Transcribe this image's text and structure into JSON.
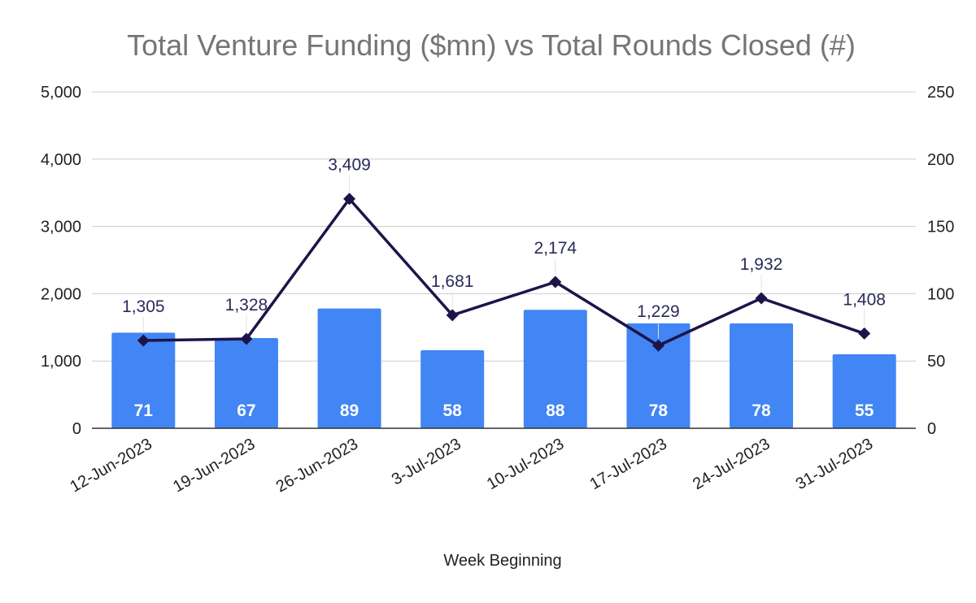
{
  "chart_data": {
    "type": "bar",
    "title": "Total Venture Funding ($mn) vs Total Rounds Closed (#)",
    "xlabel": "Week Beginning",
    "ylabel": "",
    "categories": [
      "12-Jun-2023",
      "19-Jun-2023",
      "26-Jun-2023",
      "3-Jul-2023",
      "10-Jul-2023",
      "17-Jul-2023",
      "24-Jul-2023",
      "31-Jul-2023"
    ],
    "left_axis": {
      "ylim": [
        0,
        5000
      ],
      "ticks": [
        "0",
        "1,000",
        "2,000",
        "3,000",
        "4,000",
        "5,000"
      ]
    },
    "right_axis": {
      "ylim": [
        0,
        250
      ],
      "ticks": [
        "0",
        "50",
        "100",
        "150",
        "200",
        "250"
      ]
    },
    "series": [
      {
        "name": "Total Rounds Closed (#)",
        "type": "bar",
        "axis": "right",
        "color": "#4285f4",
        "values": [
          71,
          67,
          89,
          58,
          88,
          78,
          78,
          55
        ],
        "labels": [
          "71",
          "67",
          "89",
          "58",
          "88",
          "78",
          "78",
          "55"
        ]
      },
      {
        "name": "Total Venture Funding ($mn)",
        "type": "line",
        "axis": "left",
        "color": "#1c1449",
        "values": [
          1305,
          1328,
          3409,
          1681,
          2174,
          1229,
          1932,
          1408
        ],
        "labels": [
          "1,305",
          "1,328",
          "3,409",
          "1,681",
          "2,174",
          "1,229",
          "1,932",
          "1,408"
        ]
      }
    ],
    "grid": true
  }
}
